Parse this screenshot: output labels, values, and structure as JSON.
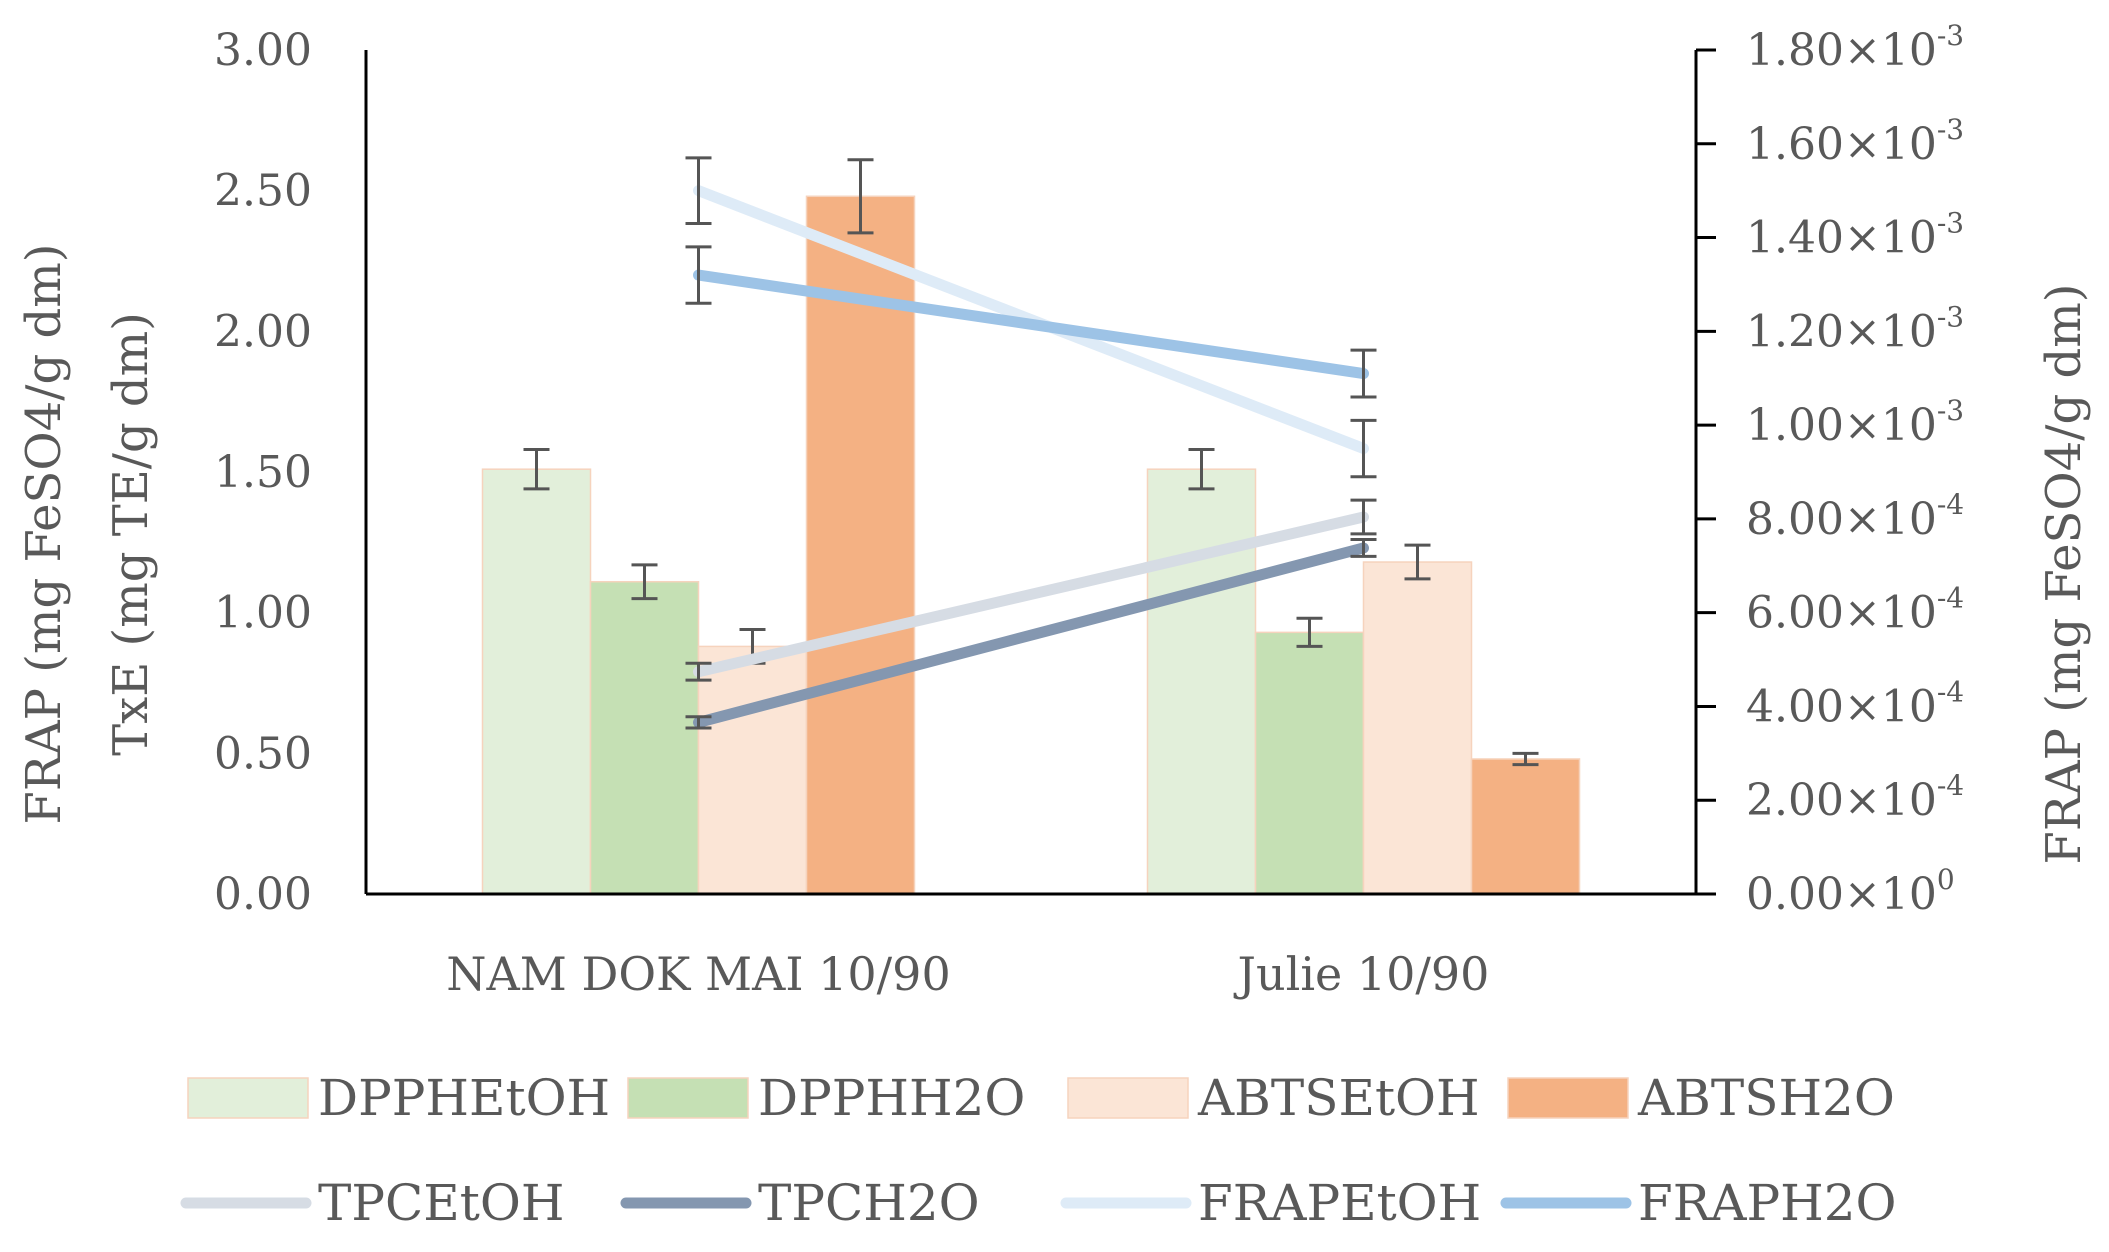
{
  "chart_data": {
    "type": "bar",
    "categories": [
      "NAM DOK MAI 10/90",
      "Julie 10/90"
    ],
    "left_axis": {
      "title_line1": "FRAP (mg FeSO4/g dm)",
      "title_line2": "TxE (mg TE/g dm)",
      "range": [
        0,
        3
      ],
      "ticks": [
        "0.00",
        "0.50",
        "1.00",
        "1.50",
        "2.00",
        "2.50",
        "3.00"
      ]
    },
    "right_axis": {
      "title": "FRAP (mg FeSO4/g dm)",
      "range": [
        0,
        0.0018
      ],
      "ticks": [
        {
          "mantissa": "0.00",
          "exp": "0"
        },
        {
          "mantissa": "2.00",
          "exp": "-4"
        },
        {
          "mantissa": "4.00",
          "exp": "-4"
        },
        {
          "mantissa": "6.00",
          "exp": "-4"
        },
        {
          "mantissa": "8.00",
          "exp": "-4"
        },
        {
          "mantissa": "1.00",
          "exp": "-3"
        },
        {
          "mantissa": "1.20",
          "exp": "-3"
        },
        {
          "mantissa": "1.40",
          "exp": "-3"
        },
        {
          "mantissa": "1.60",
          "exp": "-3"
        },
        {
          "mantissa": "1.80",
          "exp": "-3"
        }
      ]
    },
    "bar_series": [
      {
        "name": "DPPHEtOH",
        "color": "#e2efda",
        "values": [
          1.51,
          1.51
        ],
        "errors": [
          0.07,
          0.07
        ]
      },
      {
        "name": "DPPHH2O",
        "color": "#c5e0b4",
        "values": [
          1.11,
          0.93
        ],
        "errors": [
          0.06,
          0.05
        ]
      },
      {
        "name": "ABTSEtOH",
        "color": "#fbe5d6",
        "values": [
          0.88,
          1.18
        ],
        "errors": [
          0.06,
          0.06
        ]
      },
      {
        "name": "ABTSH2O",
        "color": "#f4b183",
        "values": [
          2.48,
          0.48
        ],
        "errors": [
          0.13,
          0.02
        ]
      }
    ],
    "line_series": [
      {
        "name": "TPCEtOH",
        "color": "#d6dce4",
        "axis": "left",
        "values": [
          0.79,
          1.34
        ],
        "errors": [
          0.03,
          0.06
        ]
      },
      {
        "name": "TPCH2O",
        "color": "#8497b0",
        "axis": "left",
        "values": [
          0.61,
          1.23
        ],
        "errors": [
          0.02,
          0.03
        ]
      },
      {
        "name": "FRAPEtOH",
        "color": "#deebf7",
        "axis": "right",
        "values": [
          0.0015,
          0.00095
        ],
        "errors": [
          7e-05,
          6e-05
        ]
      },
      {
        "name": "FRAPH2O",
        "color": "#9dc3e6",
        "axis": "right",
        "values": [
          0.00132,
          0.00111
        ],
        "errors": [
          6e-05,
          5e-05
        ]
      }
    ],
    "legend": {
      "row1": [
        "DPPHEtOH",
        "DPPHH2O",
        "ABTSEtOH",
        "ABTSH2O"
      ],
      "row2": [
        "TPCEtOH",
        "TPCH2O",
        "FRAPEtOH",
        "FRAPH2O"
      ],
      "placement": "bottom"
    }
  }
}
